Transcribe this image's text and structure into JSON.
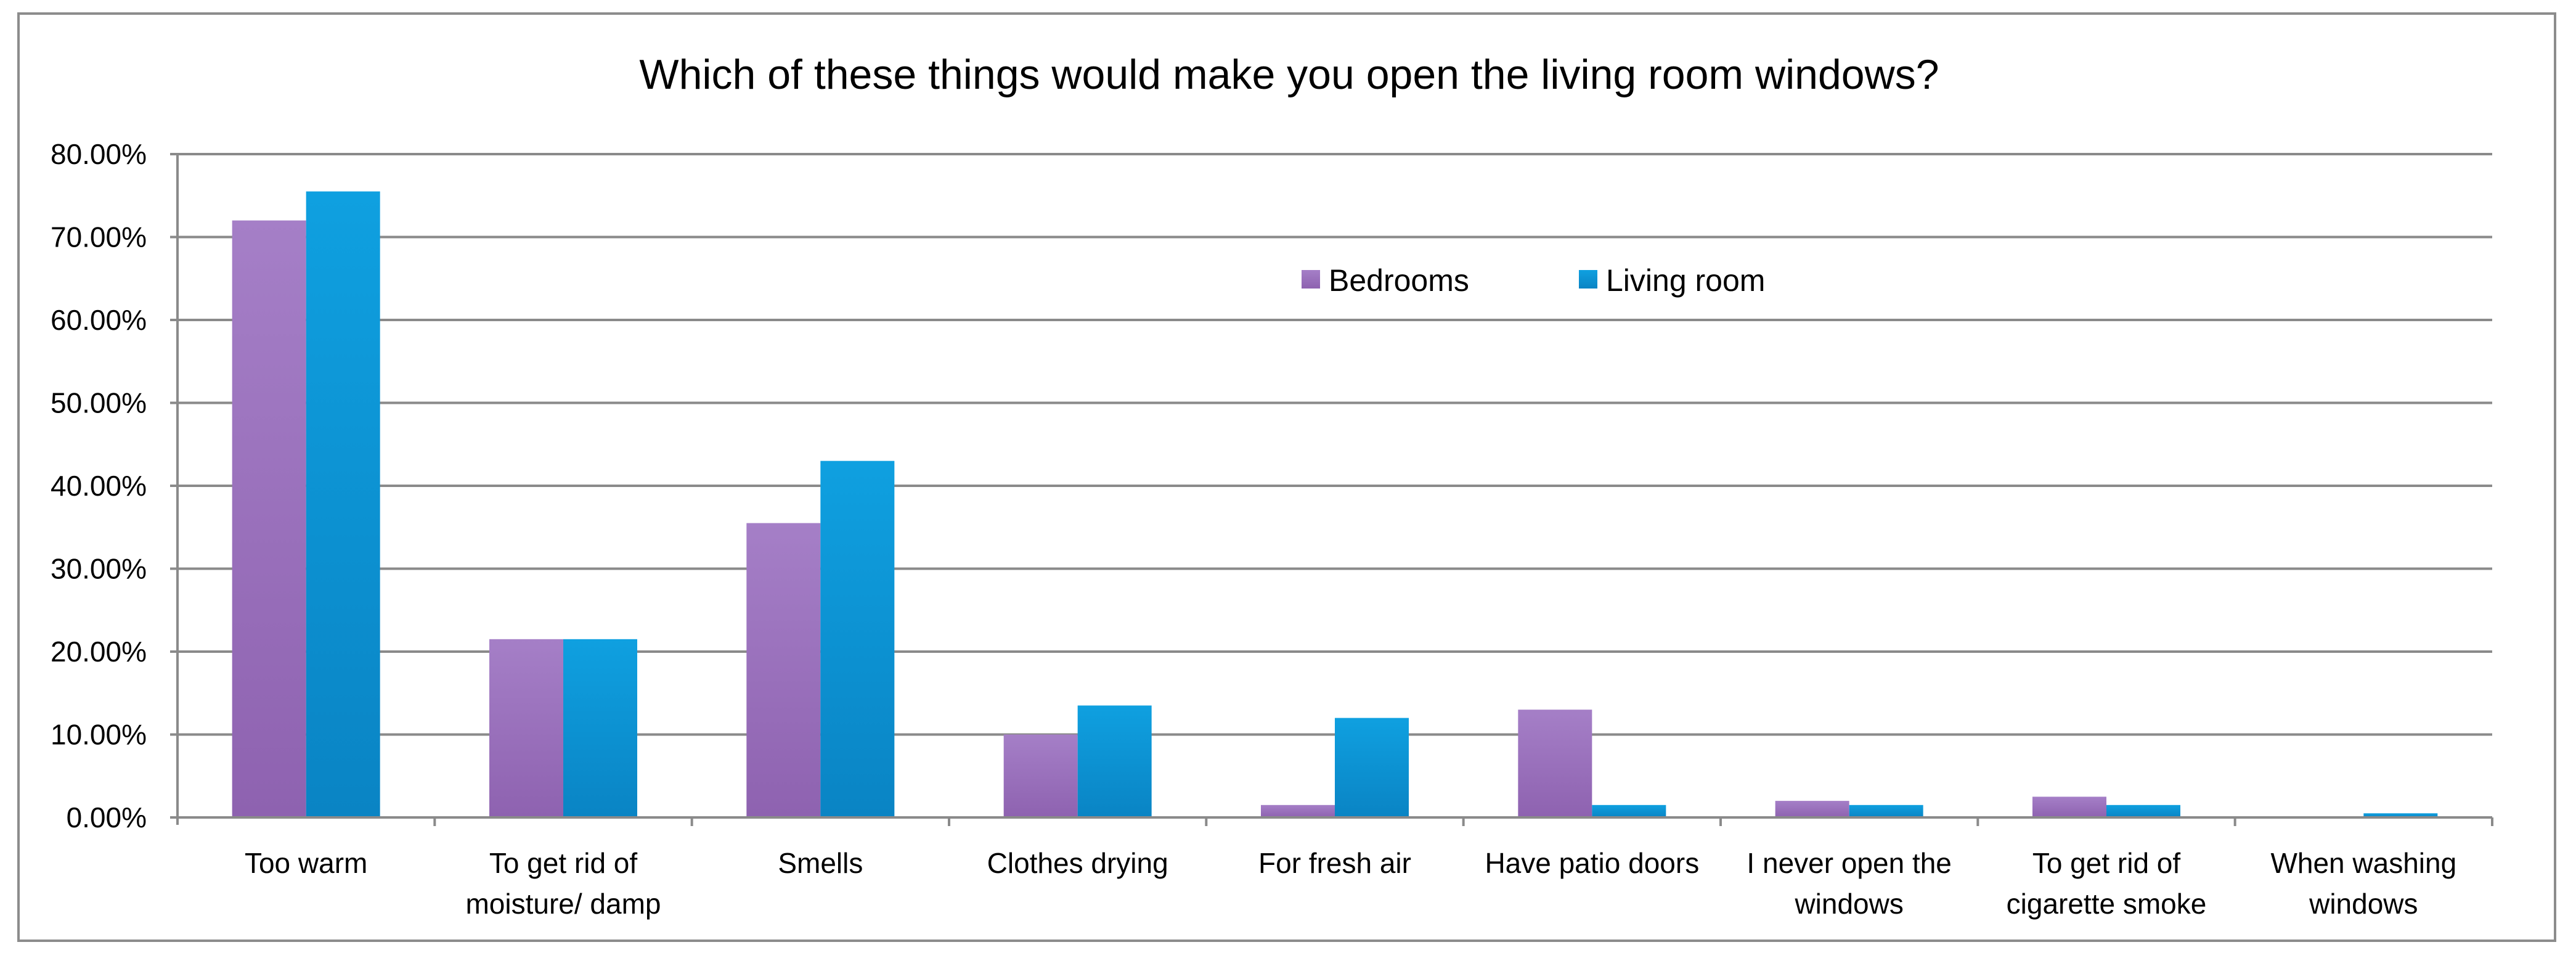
{
  "chart_data": {
    "type": "bar",
    "title": "Which of these things would make you open the living room windows?",
    "categories": [
      [
        "Too warm"
      ],
      [
        "To get rid of",
        "moisture/ damp"
      ],
      [
        "Smells"
      ],
      [
        "Clothes drying"
      ],
      [
        "For fresh air"
      ],
      [
        "Have patio doors"
      ],
      [
        "I never open the",
        "windows"
      ],
      [
        "To get rid of",
        "cigarette smoke"
      ],
      [
        "When washing",
        "windows"
      ]
    ],
    "series": [
      {
        "name": "Bedrooms",
        "color": "#8e62b0",
        "color_light": "#a57fc7",
        "values": [
          72.0,
          21.5,
          35.5,
          10.0,
          1.5,
          13.0,
          2.0,
          2.5,
          0.0
        ]
      },
      {
        "name": "Living room",
        "color": "#0a84c4",
        "color_light": "#0fa0e0",
        "values": [
          75.5,
          21.5,
          43.0,
          13.5,
          12.0,
          1.5,
          1.5,
          1.5,
          0.5
        ]
      }
    ],
    "y_ticks": [
      "0.00%",
      "10.00%",
      "20.00%",
      "30.00%",
      "40.00%",
      "50.00%",
      "60.00%",
      "70.00%",
      "80.00%"
    ],
    "ylim": [
      0,
      80
    ],
    "grid": true,
    "legend_position": "top-center"
  }
}
